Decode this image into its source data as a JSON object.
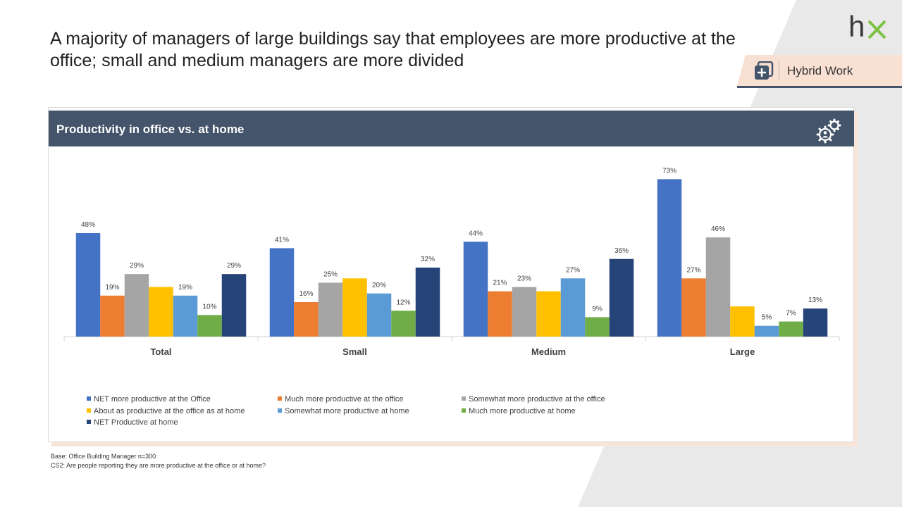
{
  "slide": {
    "title": "A majority of managers of large buildings say that employees are more productive at the office; small and medium managers are more divided",
    "logo_text": "hx",
    "tag_label": "Hybrid Work",
    "tag_icon": "plus-square-icon"
  },
  "panel": {
    "title": "Productivity  in office vs. at home",
    "icon": "gears-person-icon"
  },
  "footnotes": {
    "base": "Base: Office Building Manager n=300",
    "question": "CS2: Are people reporting they are more productive at the office or at home?"
  },
  "colors": {
    "header": "#44546a",
    "accent_peach": "#f8e0d2",
    "logo_dark": "#3a3a3a",
    "logo_green": "#7cc242"
  },
  "chart_data": {
    "type": "bar",
    "categories": [
      "Total",
      "Small",
      "Medium",
      "Large"
    ],
    "ylim": [
      0,
      80
    ],
    "legend_position": "bottom",
    "grid": false,
    "series": [
      {
        "name": "NET more productive at the Office",
        "color": "#4472c4",
        "values": [
          48,
          41,
          44,
          73
        ],
        "labels": [
          "48%",
          "41%",
          "44%",
          "73%"
        ]
      },
      {
        "name": "Much more productive at the office",
        "color": "#ed7d31",
        "values": [
          19,
          16,
          21,
          27
        ],
        "labels": [
          "19%",
          "16%",
          "21%",
          "27%"
        ]
      },
      {
        "name": "Somewhat more productive at the office",
        "color": "#a5a5a5",
        "values": [
          29,
          25,
          23,
          46
        ],
        "labels": [
          "29%",
          "25%",
          "23%",
          "46%"
        ]
      },
      {
        "name": "About as productive at the office as at home",
        "color": "#ffc000",
        "values": [
          23,
          27,
          21,
          14
        ],
        "labels": [
          "",
          "",
          "",
          ""
        ]
      },
      {
        "name": "Somewhat more productive at home",
        "color": "#5b9bd5",
        "values": [
          19,
          20,
          27,
          5
        ],
        "labels": [
          "19%",
          "20%",
          "27%",
          "5%"
        ]
      },
      {
        "name": "Much more productive at home",
        "color": "#70ad47",
        "values": [
          10,
          12,
          9,
          7
        ],
        "labels": [
          "10%",
          "12%",
          "9%",
          "7%"
        ]
      },
      {
        "name": "NET Productive at home",
        "color": "#264478",
        "values": [
          29,
          32,
          36,
          13
        ],
        "labels": [
          "29%",
          "32%",
          "36%",
          "13%"
        ]
      }
    ]
  }
}
